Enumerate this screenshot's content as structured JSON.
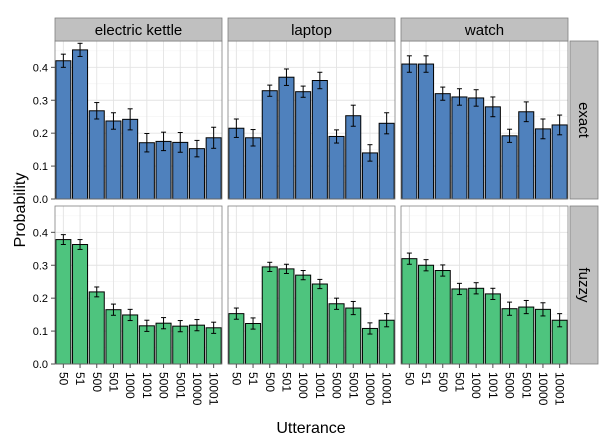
{
  "chart_data": {
    "type": "bar",
    "xlabel": "Utterance",
    "ylabel": "Probability",
    "ylim": [
      0,
      0.48
    ],
    "yticks": [
      0.0,
      0.1,
      0.2,
      0.3,
      0.4
    ],
    "ytick_labels": [
      "0.0",
      "0.1",
      "0.2",
      "0.3",
      "0.4"
    ],
    "grid": true,
    "categories": [
      "50",
      "51",
      "500",
      "501",
      "1000",
      "1001",
      "5000",
      "5001",
      "10000",
      "10001"
    ],
    "column_facets": [
      "electric kettle",
      "laptop",
      "watch"
    ],
    "row_facets": [
      "exact",
      "fuzzy"
    ],
    "colors": {
      "exact": "#4f81bd",
      "fuzzy": "#4ec47e"
    },
    "panels": [
      {
        "col": "electric kettle",
        "row": "exact",
        "values": [
          0.42,
          0.453,
          0.268,
          0.237,
          0.242,
          0.171,
          0.175,
          0.172,
          0.153,
          0.186
        ],
        "errors": [
          0.02,
          0.02,
          0.025,
          0.025,
          0.032,
          0.028,
          0.028,
          0.03,
          0.025,
          0.032
        ]
      },
      {
        "col": "laptop",
        "row": "exact",
        "values": [
          0.215,
          0.186,
          0.329,
          0.37,
          0.326,
          0.36,
          0.19,
          0.253,
          0.14,
          0.23
        ],
        "errors": [
          0.028,
          0.025,
          0.017,
          0.025,
          0.017,
          0.025,
          0.02,
          0.032,
          0.025,
          0.032
        ]
      },
      {
        "col": "watch",
        "row": "exact",
        "values": [
          0.41,
          0.41,
          0.32,
          0.31,
          0.307,
          0.28,
          0.192,
          0.265,
          0.213,
          0.225
        ],
        "errors": [
          0.025,
          0.025,
          0.02,
          0.025,
          0.025,
          0.03,
          0.02,
          0.03,
          0.03,
          0.03
        ]
      },
      {
        "col": "electric kettle",
        "row": "fuzzy",
        "values": [
          0.378,
          0.363,
          0.219,
          0.165,
          0.149,
          0.116,
          0.124,
          0.115,
          0.118,
          0.11
        ],
        "errors": [
          0.015,
          0.015,
          0.015,
          0.017,
          0.017,
          0.017,
          0.017,
          0.017,
          0.017,
          0.017
        ]
      },
      {
        "col": "laptop",
        "row": "fuzzy",
        "values": [
          0.153,
          0.123,
          0.295,
          0.289,
          0.27,
          0.243,
          0.183,
          0.17,
          0.108,
          0.133
        ],
        "errors": [
          0.017,
          0.017,
          0.014,
          0.014,
          0.014,
          0.014,
          0.017,
          0.02,
          0.017,
          0.02
        ]
      },
      {
        "col": "watch",
        "row": "fuzzy",
        "values": [
          0.32,
          0.3,
          0.284,
          0.228,
          0.23,
          0.213,
          0.168,
          0.173,
          0.166,
          0.133
        ],
        "errors": [
          0.017,
          0.017,
          0.017,
          0.017,
          0.017,
          0.017,
          0.02,
          0.02,
          0.02,
          0.02
        ]
      }
    ]
  }
}
